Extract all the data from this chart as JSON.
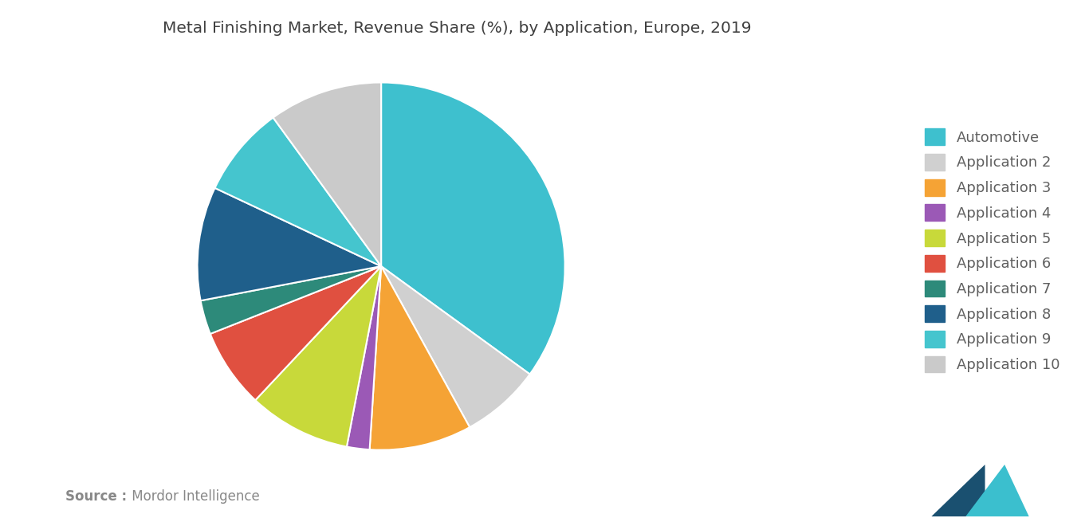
{
  "title": "Metal Finishing Market, Revenue Share (%), by Application, Europe, 2019",
  "labels": [
    "Automotive",
    "Application 2",
    "Application 3",
    "Application 4",
    "Application 5",
    "Application 6",
    "Application 7",
    "Application 8",
    "Application 9",
    "Application 10"
  ],
  "sizes": [
    35,
    7,
    9,
    2,
    9,
    7,
    3,
    10,
    8,
    10
  ],
  "colors": [
    "#3EC0CE",
    "#D0D0D0",
    "#F5A335",
    "#9B59B6",
    "#C8D93A",
    "#E05040",
    "#2D8A7A",
    "#1F5F8B",
    "#45C5CE",
    "#CACACA"
  ],
  "source_bold": "Source :",
  "source_normal": " Mordor Intelligence",
  "background_color": "#FFFFFF",
  "title_color": "#404040",
  "legend_text_color": "#606060",
  "source_color": "#888888",
  "start_angle": 90
}
